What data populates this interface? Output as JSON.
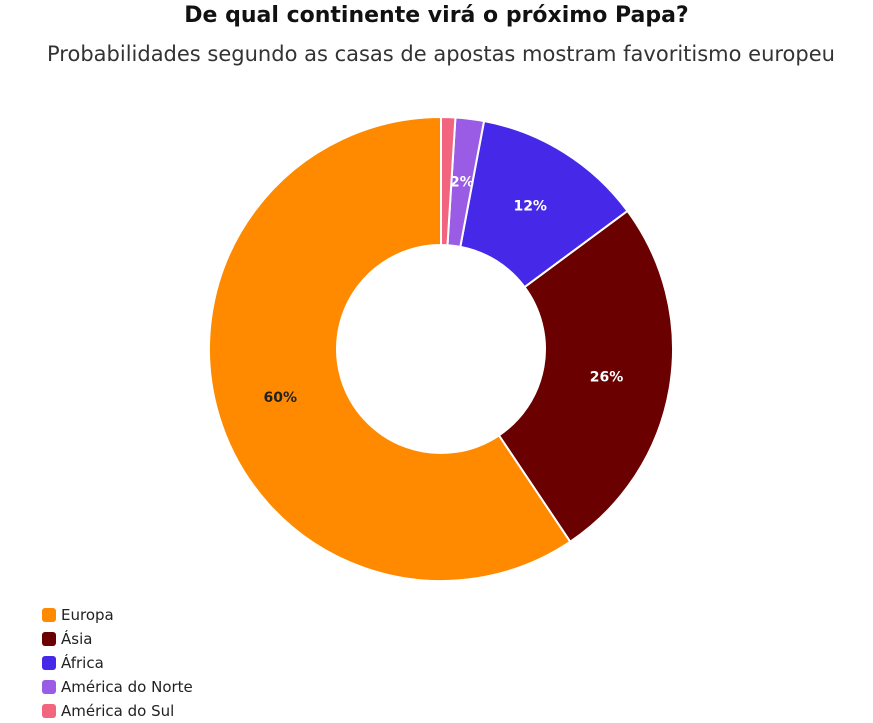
{
  "chart_data": {
    "type": "pie",
    "variant": "donut",
    "title": "De qual continente virá o próximo Papa?",
    "subtitle": "Probabilidades segundo as casas de apostas mostram favoritismo europeu",
    "legend_position": "bottom-left",
    "slices": [
      {
        "name": "Europa",
        "value": 60,
        "label": "60%",
        "color": "#FF8A00",
        "label_color": "#222222"
      },
      {
        "name": "Ásia",
        "value": 26,
        "label": "26%",
        "color": "#6B0000",
        "label_color": "#ffffff"
      },
      {
        "name": "África",
        "value": 12,
        "label": "12%",
        "color": "#4629E8",
        "label_color": "#ffffff"
      },
      {
        "name": "América do Norte",
        "value": 2,
        "label": "2%",
        "color": "#9B5CE5",
        "label_color": "#ffffff"
      },
      {
        "name": "América do Sul",
        "value": 1,
        "label": "",
        "color": "#F2657E",
        "label_color": "#ffffff"
      }
    ]
  }
}
